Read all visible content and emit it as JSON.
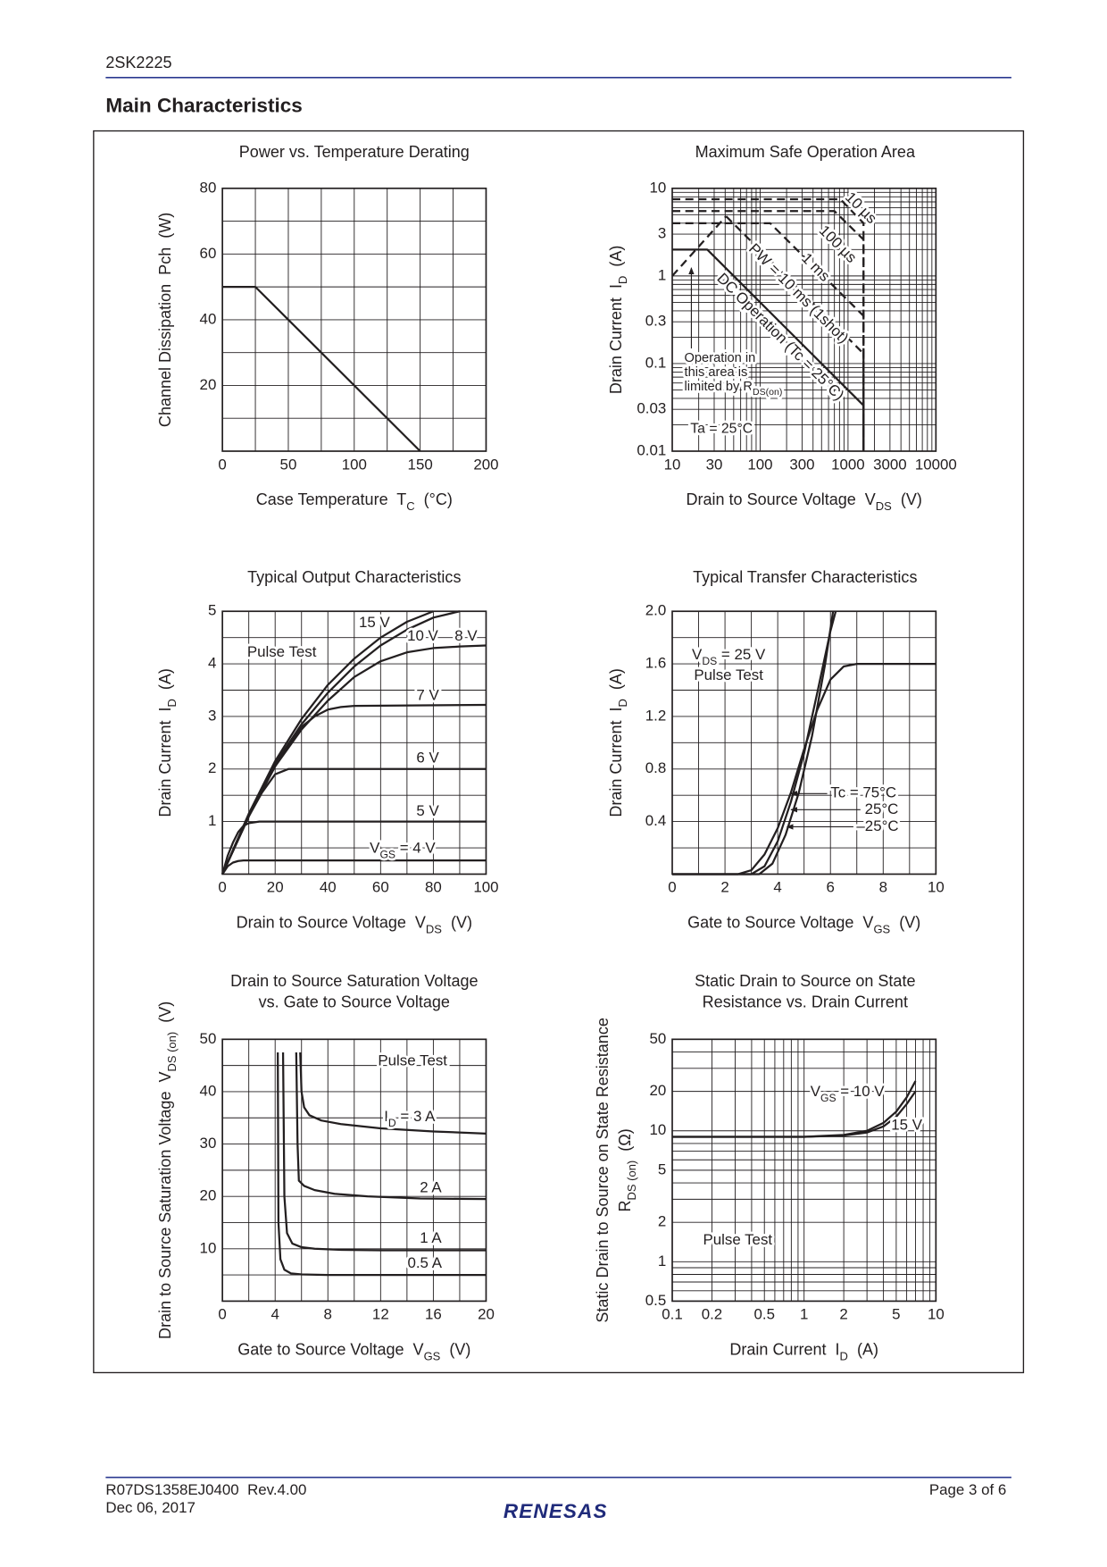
{
  "header": {
    "doc_id": "2SK2225",
    "section_title": "Main Characteristics"
  },
  "footer": {
    "doc_number": "R07DS1358EJ0400  Rev.4.00",
    "date": "Dec 06, 2017",
    "page": "Page 3 of 6",
    "logo": "RENESAS"
  },
  "chart_data": [
    {
      "type": "line",
      "title": "Power vs. Temperature Derating",
      "xlabel": [
        "Case Temperature  T",
        "C",
        "  (°C)"
      ],
      "ylabel": "Channel Dissipation  Pch  (W)",
      "xlim": [
        0,
        200
      ],
      "ylim": [
        0,
        80
      ],
      "xticks": [
        0,
        50,
        100,
        150,
        200
      ],
      "yticks": [
        20,
        40,
        60,
        80
      ],
      "x_grid": [
        0,
        25,
        50,
        75,
        100,
        125,
        150,
        175,
        200
      ],
      "y_grid": [
        0,
        10,
        20,
        30,
        40,
        50,
        60,
        70,
        80
      ],
      "series": [
        {
          "color": "#231f20",
          "x": [
            0,
            25,
            150
          ],
          "values": [
            50,
            50,
            0
          ]
        }
      ]
    },
    {
      "type": "line",
      "title": "Maximum Safe Operation Area",
      "log_x": true,
      "log_y": true,
      "xlabel": [
        "Drain to Source Voltage  V",
        "DS",
        "  (V)"
      ],
      "ylabel": [
        "Drain Current  I",
        "D",
        "  (A)"
      ],
      "xlim": [
        10,
        10000
      ],
      "ylim": [
        0.01,
        10
      ],
      "xticks": [
        10,
        30,
        100,
        300,
        1000,
        3000,
        10000
      ],
      "yticks": [
        0.01,
        0.03,
        0.1,
        0.3,
        1,
        3,
        10
      ],
      "x_grid": [
        10,
        20,
        30,
        40,
        50,
        60,
        70,
        80,
        90,
        100,
        200,
        300,
        400,
        500,
        600,
        700,
        800,
        900,
        1000,
        2000,
        3000,
        4000,
        5000,
        6000,
        7000,
        8000,
        9000,
        10000
      ],
      "y_grid": [
        0.01,
        0.02,
        0.03,
        0.04,
        0.05,
        0.06,
        0.07,
        0.08,
        0.09,
        0.1,
        0.2,
        0.3,
        0.4,
        0.5,
        0.6,
        0.7,
        0.8,
        0.9,
        1,
        2,
        3,
        4,
        5,
        6,
        7,
        8,
        9,
        10
      ],
      "series": [
        {
          "name": "DC Operation (Tc = 25°C)",
          "color": "#231f20",
          "x": [
            10,
            25,
            1500,
            1500
          ],
          "values": [
            2,
            2,
            0.0333,
            0.01
          ]
        },
        {
          "color": "#231f20",
          "dash": true,
          "x": [
            10,
            41
          ],
          "values": [
            1,
            4.8
          ]
        },
        {
          "name": "10 µs",
          "color": "#231f20",
          "dash": true,
          "x": [
            10,
            820,
            1500,
            1500
          ],
          "values": [
            7.5,
            7.5,
            4,
            0.01
          ]
        },
        {
          "name": "100 µs",
          "color": "#231f20",
          "dash": true,
          "x": [
            10,
            700,
            1500,
            1500
          ],
          "values": [
            5.5,
            5.5,
            2.6,
            0.01
          ]
        },
        {
          "name": "1 ms",
          "color": "#231f20",
          "dash": true,
          "x": [
            10,
            130,
            1500,
            1500
          ],
          "values": [
            4,
            4,
            0.35,
            0.01
          ]
        },
        {
          "name": "PW = 10 ms (1shot)",
          "color": "#231f20",
          "dash": true,
          "x": [
            41,
            1500,
            1500
          ],
          "values": [
            4.8,
            0.13,
            0.01
          ]
        }
      ],
      "annotations": [
        "Operation in",
        "this area is",
        [
          "limited by R",
          "DS(on)"
        ],
        "Ta = 25°C"
      ]
    },
    {
      "type": "line",
      "title": "Typical Output Characteristics",
      "xlabel": [
        "Drain to Source Voltage  V",
        "DS",
        "  (V)"
      ],
      "ylabel": [
        "Drain Current  I",
        "D",
        "  (A)"
      ],
      "xlim": [
        0,
        100
      ],
      "ylim": [
        0,
        5
      ],
      "xticks": [
        0,
        20,
        40,
        60,
        80,
        100
      ],
      "yticks": [
        1,
        2,
        3,
        4,
        5
      ],
      "x_grid": [
        0,
        10,
        20,
        30,
        40,
        50,
        60,
        70,
        80,
        90,
        100
      ],
      "y_grid": [
        0,
        0.5,
        1,
        1.5,
        2,
        2.5,
        3,
        3.5,
        4,
        4.5,
        5
      ],
      "series": [
        {
          "name": [
            "V",
            "GS",
            " = 4 V"
          ],
          "color": "#231f20",
          "x": [
            0,
            2,
            4,
            6,
            8,
            10,
            100
          ],
          "values": [
            0,
            0.15,
            0.22,
            0.25,
            0.26,
            0.26,
            0.26
          ]
        },
        {
          "name": "5 V",
          "color": "#231f20",
          "x": [
            0,
            2,
            4,
            6,
            8,
            10,
            14,
            20,
            100
          ],
          "values": [
            0,
            0.35,
            0.6,
            0.8,
            0.92,
            0.97,
            1,
            1,
            1
          ]
        },
        {
          "name": "6 V",
          "color": "#231f20",
          "x": [
            0,
            5,
            10,
            15,
            20,
            25,
            30,
            100
          ],
          "values": [
            0,
            0.55,
            1.1,
            1.55,
            1.9,
            2,
            2,
            2
          ]
        },
        {
          "name": "7 V",
          "color": "#231f20",
          "x": [
            0,
            5,
            10,
            15,
            20,
            25,
            30,
            35,
            40,
            45,
            50,
            100
          ],
          "values": [
            0,
            0.55,
            1.1,
            1.6,
            2.05,
            2.45,
            2.8,
            3,
            3.13,
            3.18,
            3.2,
            3.22
          ]
        },
        {
          "name": "8 V",
          "color": "#231f20",
          "x": [
            0,
            10,
            20,
            30,
            40,
            50,
            60,
            70,
            80,
            90,
            100
          ],
          "values": [
            0,
            1.1,
            2.05,
            2.75,
            3.3,
            3.75,
            4.05,
            4.22,
            4.3,
            4.33,
            4.35
          ]
        },
        {
          "name": "10 V",
          "color": "#231f20",
          "x": [
            0,
            10,
            20,
            30,
            40,
            50,
            60,
            70,
            80,
            90
          ],
          "values": [
            0,
            1.1,
            2.1,
            2.85,
            3.45,
            3.95,
            4.35,
            4.65,
            4.88,
            5
          ]
        },
        {
          "name": "15 V",
          "color": "#231f20",
          "x": [
            0,
            10,
            20,
            30,
            40,
            50,
            60,
            70,
            80
          ],
          "values": [
            0,
            1.15,
            2.15,
            2.95,
            3.6,
            4.1,
            4.5,
            4.8,
            5
          ]
        }
      ],
      "annotations": [
        "Pulse Test"
      ]
    },
    {
      "type": "line",
      "title": "Typical Transfer Characteristics",
      "xlabel": [
        "Gate to Source Voltage  V",
        "GS",
        "  (V)"
      ],
      "ylabel": [
        "Drain Current  I",
        "D",
        "  (A)"
      ],
      "xlim": [
        0,
        10
      ],
      "ylim": [
        0,
        2
      ],
      "xticks": [
        0,
        2,
        4,
        6,
        8,
        10
      ],
      "yticks": [
        0.4,
        0.8,
        1.2,
        1.6,
        {
          "value": 2,
          "label": "2.0"
        }
      ],
      "x_grid": [
        0,
        1,
        2,
        3,
        4,
        5,
        6,
        7,
        8,
        9,
        10
      ],
      "y_grid": [
        0,
        0.2,
        0.4,
        0.6,
        0.8,
        1,
        1.2,
        1.4,
        1.6,
        1.8,
        2
      ],
      "series": [
        {
          "name": "Tc = 75°C",
          "color": "#231f20",
          "x": [
            0,
            2.5,
            3,
            3.5,
            4,
            4.5,
            5,
            5.5,
            6,
            6.5,
            7,
            8,
            10
          ],
          "values": [
            0,
            0,
            0.03,
            0.15,
            0.35,
            0.62,
            0.95,
            1.25,
            1.48,
            1.58,
            1.6,
            1.6,
            1.6
          ]
        },
        {
          "name": "25°C",
          "color": "#231f20",
          "x": [
            0,
            3,
            3.5,
            4,
            4.5,
            5,
            5.5,
            6,
            6.2
          ],
          "values": [
            0,
            0,
            0.06,
            0.25,
            0.55,
            0.92,
            1.38,
            1.85,
            2
          ]
        },
        {
          "name": "–25°C",
          "color": "#231f20",
          "x": [
            0,
            3.3,
            3.8,
            4.3,
            4.8,
            5.3,
            5.8,
            6.1
          ],
          "values": [
            0,
            0,
            0.08,
            0.3,
            0.62,
            1.05,
            1.6,
            2
          ]
        }
      ],
      "annotations": [
        [
          "V",
          "DS",
          " = 25 V"
        ],
        "Pulse Test"
      ]
    },
    {
      "type": "line",
      "title_lines": [
        "Drain to Source Saturation Voltage",
        "vs. Gate to Source Voltage"
      ],
      "xlabel": [
        "Gate to Source Voltage  V",
        "GS",
        "  (V)"
      ],
      "ylabel": [
        "Drain to Source Saturation Voltage  V",
        "DS (on)",
        "  (V)"
      ],
      "xlim": [
        0,
        20
      ],
      "ylim": [
        0,
        50
      ],
      "xticks": [
        0,
        4,
        8,
        12,
        16,
        20
      ],
      "yticks": [
        10,
        20,
        30,
        40,
        50
      ],
      "x_grid": [
        0,
        2,
        4,
        6,
        8,
        10,
        12,
        14,
        16,
        18,
        20
      ],
      "y_grid": [
        0,
        5,
        10,
        15,
        20,
        25,
        30,
        35,
        40,
        45,
        50
      ],
      "series": [
        {
          "name": [
            "I",
            "D",
            " = 3 A"
          ],
          "color": "#231f20",
          "x": [
            5.9,
            6,
            6.2,
            6.6,
            7.5,
            9,
            12,
            16,
            20
          ],
          "values": [
            47.5,
            40,
            37,
            35.5,
            34.5,
            33.8,
            33,
            32.4,
            32
          ]
        },
        {
          "name": "2 A",
          "color": "#231f20",
          "x": [
            5.6,
            5.7,
            5.8,
            6.2,
            7,
            8.5,
            11,
            15,
            20
          ],
          "values": [
            47.5,
            30,
            23,
            22,
            21.2,
            20.5,
            20,
            19.6,
            19.5
          ]
        },
        {
          "name": "1 A",
          "color": "#231f20",
          "x": [
            4.6,
            4.7,
            4.9,
            5.3,
            6,
            7,
            9,
            12,
            20
          ],
          "values": [
            47.5,
            20,
            13,
            11,
            10.3,
            10,
            9.8,
            9.7,
            9.7
          ]
        },
        {
          "name": "0.5 A",
          "color": "#231f20",
          "x": [
            4.2,
            4.25,
            4.4,
            4.7,
            5.2,
            6,
            8,
            20
          ],
          "values": [
            47.5,
            15,
            8,
            6,
            5.3,
            5.1,
            5,
            5
          ]
        }
      ],
      "annotations": [
        "Pulse Test"
      ]
    },
    {
      "type": "line",
      "title_lines": [
        "Static Drain to Source on State",
        "Resistance vs. Drain Current"
      ],
      "log_x": true,
      "log_y": true,
      "xlabel": [
        "Drain Current  I",
        "D",
        "  (A)"
      ],
      "ylabel_lines": [
        "Static Drain to Source on State Resistance",
        [
          "R",
          "DS (on)",
          "  (Ω)"
        ]
      ],
      "xlim": [
        0.1,
        10
      ],
      "ylim": [
        0.5,
        50
      ],
      "xticks": [
        0.1,
        0.2,
        0.5,
        1,
        2,
        5,
        10
      ],
      "yticks": [
        0.5,
        1,
        2,
        5,
        10,
        20,
        50
      ],
      "x_grid": [
        0.1,
        0.2,
        0.3,
        0.4,
        0.5,
        0.6,
        0.7,
        0.8,
        0.9,
        1,
        2,
        3,
        4,
        5,
        6,
        7,
        8,
        9,
        10
      ],
      "y_grid": [
        0.5,
        0.6,
        0.7,
        0.8,
        0.9,
        1,
        2,
        3,
        4,
        5,
        6,
        7,
        8,
        9,
        10,
        20,
        30,
        40,
        50
      ],
      "series": [
        {
          "name": [
            "V",
            "GS",
            " = 10 V"
          ],
          "color": "#231f20",
          "x": [
            0.1,
            1,
            2,
            3,
            4,
            5,
            6,
            7
          ],
          "values": [
            9,
            9,
            9.3,
            10,
            11.5,
            14,
            18,
            24
          ]
        },
        {
          "name": "15 V",
          "color": "#231f20",
          "x": [
            0.1,
            1,
            2,
            3,
            4,
            5,
            6,
            7
          ],
          "values": [
            9,
            9,
            9.2,
            9.7,
            10.8,
            12.8,
            16,
            20
          ]
        }
      ],
      "annotations": [
        "Pulse Test"
      ]
    }
  ]
}
